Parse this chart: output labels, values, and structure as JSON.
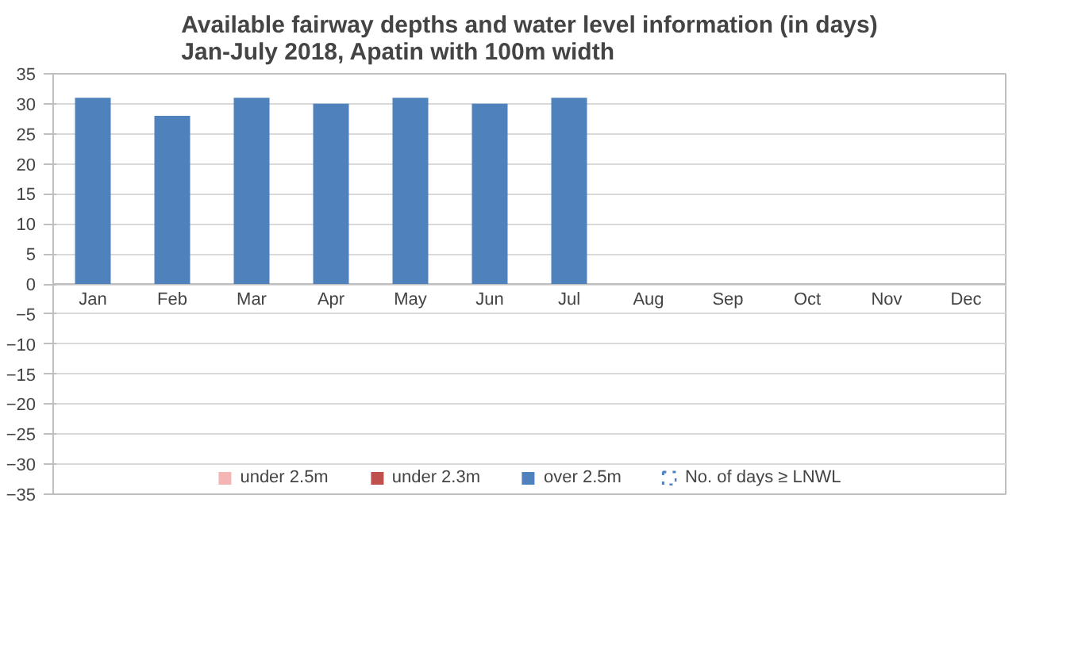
{
  "chart_data": {
    "type": "bar",
    "title": "Available fairway depths and water level information (in days)\nJan-July 2018,  Apatin with 100m width",
    "categories": [
      "Jan",
      "Feb",
      "Mar",
      "Apr",
      "May",
      "Jun",
      "Jul",
      "Aug",
      "Sep",
      "Oct",
      "Nov",
      "Dec"
    ],
    "stacked": true,
    "ylim": [
      -35,
      35
    ],
    "yticks": [
      -35,
      -30,
      -25,
      -20,
      -15,
      -10,
      -5,
      0,
      5,
      10,
      15,
      20,
      25,
      30,
      35
    ],
    "grid": "y",
    "legend": "bottom",
    "series": [
      {
        "name": "under 2.5m",
        "color": "#f4b6b4",
        "values": [
          null,
          null,
          null,
          null,
          null,
          null,
          null,
          null,
          null,
          null,
          null,
          null
        ]
      },
      {
        "name": "under 2.3m",
        "color": "#c0504d",
        "values": [
          null,
          null,
          null,
          null,
          null,
          null,
          null,
          null,
          null,
          null,
          null,
          null
        ]
      },
      {
        "name": "over 2.5m",
        "color": "#4f81bd",
        "values": [
          31,
          28,
          31,
          30,
          31,
          30,
          31,
          null,
          null,
          null,
          null,
          null
        ]
      },
      {
        "name": "No. of days ≥ LNWL",
        "color": "#4f81bd",
        "line_style": "dotted",
        "values": [
          null,
          null,
          null,
          null,
          null,
          null,
          null,
          null,
          null,
          null,
          null,
          null
        ]
      }
    ]
  }
}
